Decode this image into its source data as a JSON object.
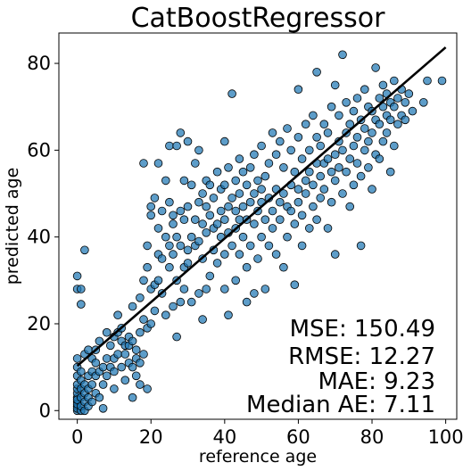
{
  "chart_data": {
    "type": "scatter",
    "title": "CatBoostRegressor",
    "xlabel": "reference age",
    "ylabel": "predicted age",
    "xlim": [
      -5,
      103
    ],
    "ylim": [
      -2,
      87
    ],
    "xticks": [
      0,
      20,
      40,
      60,
      80,
      100
    ],
    "yticks": [
      0,
      20,
      40,
      60,
      80
    ],
    "grid": false,
    "colors": {
      "point_fill": "#1f77b4",
      "point_edge": "#000000",
      "fit_line": "#000000"
    },
    "fit_line": {
      "x": [
        0,
        100
      ],
      "y": [
        10.3,
        83.7
      ]
    },
    "metrics": [
      "MSE: 150.49",
      "RMSE: 12.27",
      "MAE: 9.23",
      "Median AE: 7.11"
    ],
    "points": [
      [
        0,
        0
      ],
      [
        0,
        1
      ],
      [
        0,
        2
      ],
      [
        0,
        3
      ],
      [
        0,
        4
      ],
      [
        0,
        5
      ],
      [
        0,
        6
      ],
      [
        0,
        8
      ],
      [
        0,
        10
      ],
      [
        0,
        12
      ],
      [
        0,
        28
      ],
      [
        0,
        31
      ],
      [
        0,
        0.5
      ],
      [
        0,
        1.5
      ],
      [
        0,
        2.5
      ],
      [
        1,
        0
      ],
      [
        1,
        1
      ],
      [
        1,
        3
      ],
      [
        1,
        5
      ],
      [
        1,
        7
      ],
      [
        1,
        9
      ],
      [
        1,
        24.5
      ],
      [
        1,
        28
      ],
      [
        2,
        0
      ],
      [
        2,
        2
      ],
      [
        2,
        4
      ],
      [
        2,
        6
      ],
      [
        2,
        13
      ],
      [
        2,
        37
      ],
      [
        3,
        1
      ],
      [
        3,
        3
      ],
      [
        3,
        5
      ],
      [
        3,
        8
      ],
      [
        3,
        14
      ],
      [
        4,
        2
      ],
      [
        4,
        6
      ],
      [
        4,
        9
      ],
      [
        4,
        12
      ],
      [
        5,
        4
      ],
      [
        5,
        8
      ],
      [
        5,
        11
      ],
      [
        5,
        14
      ],
      [
        6,
        3
      ],
      [
        6,
        9
      ],
      [
        6,
        16
      ],
      [
        7,
        6
      ],
      [
        7,
        10
      ],
      [
        7,
        0.5
      ],
      [
        8,
        8
      ],
      [
        8,
        12
      ],
      [
        8,
        18
      ],
      [
        9,
        10
      ],
      [
        9,
        15
      ],
      [
        10,
        5
      ],
      [
        10,
        9
      ],
      [
        10,
        12
      ],
      [
        10,
        17
      ],
      [
        11,
        13
      ],
      [
        11,
        18
      ],
      [
        11,
        22
      ],
      [
        12,
        10
      ],
      [
        12,
        16
      ],
      [
        12,
        19
      ],
      [
        13,
        7
      ],
      [
        13,
        13
      ],
      [
        13,
        15
      ],
      [
        14,
        11
      ],
      [
        14,
        15
      ],
      [
        14,
        17
      ],
      [
        15,
        3
      ],
      [
        15,
        10
      ],
      [
        15,
        16
      ],
      [
        15,
        24
      ],
      [
        16,
        8
      ],
      [
        16,
        12
      ],
      [
        16,
        14
      ],
      [
        17,
        6
      ],
      [
        17,
        11
      ],
      [
        17,
        18
      ],
      [
        17,
        26
      ],
      [
        18,
        13
      ],
      [
        18,
        21
      ],
      [
        18,
        30
      ],
      [
        18,
        57
      ],
      [
        19,
        5
      ],
      [
        19,
        19
      ],
      [
        19,
        33
      ],
      [
        19,
        38
      ],
      [
        20,
        20
      ],
      [
        20,
        28
      ],
      [
        20,
        45
      ],
      [
        20,
        47
      ],
      [
        21,
        29
      ],
      [
        21,
        49
      ],
      [
        21,
        23
      ],
      [
        22,
        30
      ],
      [
        22,
        36
      ],
      [
        22,
        42
      ],
      [
        22,
        57
      ],
      [
        23,
        27
      ],
      [
        23,
        35
      ],
      [
        23,
        46
      ],
      [
        24,
        22
      ],
      [
        24,
        40
      ],
      [
        24,
        53
      ],
      [
        25,
        33
      ],
      [
        25,
        38
      ],
      [
        25,
        48
      ],
      [
        25,
        61
      ],
      [
        26,
        24
      ],
      [
        26,
        36
      ],
      [
        26,
        43
      ],
      [
        26,
        45
      ],
      [
        27,
        17
      ],
      [
        27,
        30
      ],
      [
        27,
        40
      ],
      [
        27,
        61
      ],
      [
        28,
        25
      ],
      [
        28,
        38
      ],
      [
        28,
        46
      ],
      [
        28,
        64
      ],
      [
        29,
        28
      ],
      [
        29,
        33
      ],
      [
        29,
        44
      ],
      [
        29,
        53
      ],
      [
        30,
        34
      ],
      [
        30,
        37
      ],
      [
        30,
        47
      ],
      [
        30,
        62
      ],
      [
        31,
        25
      ],
      [
        31,
        40
      ],
      [
        31,
        52
      ],
      [
        32,
        38
      ],
      [
        32,
        44
      ],
      [
        32,
        57
      ],
      [
        33,
        27
      ],
      [
        33,
        39
      ],
      [
        33,
        48
      ],
      [
        33,
        60
      ],
      [
        34,
        21
      ],
      [
        34,
        35
      ],
      [
        34,
        43
      ],
      [
        34,
        50
      ],
      [
        35,
        28
      ],
      [
        35,
        41
      ],
      [
        35,
        47
      ],
      [
        35,
        53
      ],
      [
        36,
        31
      ],
      [
        36,
        45
      ],
      [
        36,
        52
      ],
      [
        37,
        37
      ],
      [
        37,
        42
      ],
      [
        37,
        49
      ],
      [
        38,
        34
      ],
      [
        38,
        43
      ],
      [
        38,
        55
      ],
      [
        39,
        40
      ],
      [
        39,
        46
      ],
      [
        39,
        51
      ],
      [
        40,
        28
      ],
      [
        40,
        36
      ],
      [
        40,
        44
      ],
      [
        40,
        52
      ],
      [
        40,
        62
      ],
      [
        41,
        22
      ],
      [
        41,
        41
      ],
      [
        41,
        47
      ],
      [
        41,
        56
      ],
      [
        42,
        38
      ],
      [
        42,
        49
      ],
      [
        42,
        73
      ],
      [
        43,
        30
      ],
      [
        43,
        42
      ],
      [
        43,
        46
      ],
      [
        43,
        53
      ],
      [
        44,
        36
      ],
      [
        44,
        44
      ],
      [
        44,
        50
      ],
      [
        44,
        58
      ],
      [
        45,
        40
      ],
      [
        45,
        47
      ],
      [
        45,
        55
      ],
      [
        46,
        25
      ],
      [
        46,
        33
      ],
      [
        46,
        44
      ],
      [
        46,
        52
      ],
      [
        47,
        38
      ],
      [
        47,
        48
      ],
      [
        47,
        56
      ],
      [
        48,
        27
      ],
      [
        48,
        43
      ],
      [
        48,
        50
      ],
      [
        48,
        59
      ],
      [
        49,
        35
      ],
      [
        49,
        46
      ],
      [
        49,
        53
      ],
      [
        50,
        40
      ],
      [
        50,
        48
      ],
      [
        50,
        51
      ],
      [
        50,
        61
      ],
      [
        51,
        28
      ],
      [
        51,
        44
      ],
      [
        51,
        54
      ],
      [
        52,
        38
      ],
      [
        52,
        49
      ],
      [
        52,
        57
      ],
      [
        53,
        42
      ],
      [
        53,
        46
      ],
      [
        53,
        64
      ],
      [
        54,
        36
      ],
      [
        54,
        51
      ],
      [
        54,
        59
      ],
      [
        55,
        44
      ],
      [
        55,
        48
      ],
      [
        55,
        62
      ],
      [
        56,
        33
      ],
      [
        56,
        50
      ],
      [
        56,
        56
      ],
      [
        57,
        40
      ],
      [
        57,
        47
      ],
      [
        57,
        65
      ],
      [
        58,
        46
      ],
      [
        58,
        52
      ],
      [
        58,
        60
      ],
      [
        59,
        29
      ],
      [
        59,
        43
      ],
      [
        59,
        55
      ],
      [
        60,
        48
      ],
      [
        60,
        51
      ],
      [
        60,
        63
      ],
      [
        60,
        74
      ],
      [
        61,
        38
      ],
      [
        61,
        45
      ],
      [
        61,
        58
      ],
      [
        62,
        50
      ],
      [
        62,
        53
      ],
      [
        62,
        66
      ],
      [
        63,
        42
      ],
      [
        63,
        55
      ],
      [
        63,
        60
      ],
      [
        64,
        47
      ],
      [
        64,
        52
      ],
      [
        64,
        68
      ],
      [
        65,
        44
      ],
      [
        65,
        57
      ],
      [
        65,
        63
      ],
      [
        65,
        78
      ],
      [
        66,
        49
      ],
      [
        66,
        54
      ],
      [
        66,
        61
      ],
      [
        67,
        51
      ],
      [
        67,
        57
      ],
      [
        67,
        66
      ],
      [
        68,
        42
      ],
      [
        68,
        58
      ],
      [
        68,
        64
      ],
      [
        69,
        48
      ],
      [
        69,
        55
      ],
      [
        69,
        70
      ],
      [
        70,
        36
      ],
      [
        70,
        53
      ],
      [
        70,
        59
      ],
      [
        70,
        75
      ],
      [
        71,
        56
      ],
      [
        71,
        62
      ],
      [
        71,
        68
      ],
      [
        72,
        50
      ],
      [
        72,
        60
      ],
      [
        72,
        82
      ],
      [
        73,
        55
      ],
      [
        73,
        64
      ],
      [
        73,
        71
      ],
      [
        74,
        47
      ],
      [
        74,
        58
      ],
      [
        74,
        66
      ],
      [
        75,
        52
      ],
      [
        75,
        61
      ],
      [
        75,
        69
      ],
      [
        76,
        57
      ],
      [
        76,
        63
      ],
      [
        76,
        72
      ],
      [
        77,
        38
      ],
      [
        77,
        54
      ],
      [
        77,
        67
      ],
      [
        78,
        60
      ],
      [
        78,
        65
      ],
      [
        78,
        74
      ],
      [
        79,
        56
      ],
      [
        79,
        62
      ],
      [
        79,
        70
      ],
      [
        80,
        51
      ],
      [
        80,
        64
      ],
      [
        80,
        69
      ],
      [
        81,
        59
      ],
      [
        81,
        67
      ],
      [
        81,
        79
      ],
      [
        82,
        58
      ],
      [
        82,
        66
      ],
      [
        82,
        72
      ],
      [
        83,
        62
      ],
      [
        83,
        70
      ],
      [
        83,
        75
      ],
      [
        84,
        64
      ],
      [
        84,
        68
      ],
      [
        84,
        73
      ],
      [
        85,
        55
      ],
      [
        85,
        67
      ],
      [
        85,
        71
      ],
      [
        86,
        61
      ],
      [
        86,
        70
      ],
      [
        86,
        76
      ],
      [
        87,
        66
      ],
      [
        87,
        72
      ],
      [
        88,
        68
      ],
      [
        88,
        74
      ],
      [
        89,
        67
      ],
      [
        89,
        71
      ],
      [
        90,
        73
      ],
      [
        91,
        69
      ],
      [
        94,
        71
      ],
      [
        95,
        76
      ],
      [
        99,
        76
      ]
    ]
  }
}
